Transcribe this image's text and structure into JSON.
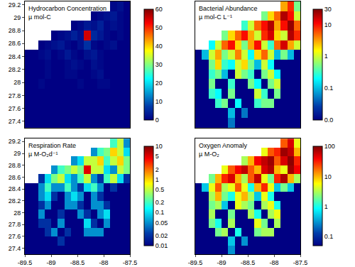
{
  "chart_data": [
    {
      "type": "heatmap",
      "title": "Hydrocarbon Concentration",
      "subtitle": "µ mol-C",
      "x": [
        -89.4375,
        -89.3125,
        -89.1875,
        -89.0625,
        -88.9375,
        -88.8125,
        -88.6875,
        -88.5625,
        -88.4375,
        -88.3125,
        -88.1875,
        -88.0625,
        -87.9375,
        -87.8125,
        -87.6875,
        -87.5625
      ],
      "y": [
        29.175,
        29.025,
        28.875,
        28.725,
        28.575,
        28.425,
        28.275,
        28.125,
        27.975,
        27.825,
        27.675,
        27.525,
        27.375
      ],
      "z": [
        [
          null,
          null,
          null,
          null,
          null,
          null,
          null,
          null,
          null,
          null,
          null,
          null,
          null,
          1,
          2,
          0
        ],
        [
          null,
          null,
          null,
          null,
          null,
          null,
          null,
          null,
          null,
          null,
          0,
          1,
          2,
          3,
          1,
          0
        ],
        [
          null,
          null,
          null,
          null,
          null,
          null,
          null,
          0,
          1,
          3,
          2,
          4,
          1,
          2,
          1,
          0
        ],
        [
          null,
          null,
          null,
          null,
          0,
          1,
          2,
          4,
          2,
          55,
          5,
          3,
          1,
          0,
          1,
          0
        ],
        [
          null,
          null,
          0,
          1,
          2,
          3,
          1,
          0,
          2,
          6,
          1,
          0,
          1,
          2,
          0,
          0
        ],
        [
          0,
          0,
          1,
          2,
          0,
          1,
          3,
          1,
          0,
          2,
          3,
          1,
          0,
          0,
          0,
          0
        ],
        [
          0,
          0,
          0,
          1,
          0,
          0,
          1,
          2,
          1,
          0,
          2,
          1,
          0,
          0,
          0,
          0
        ],
        [
          0,
          0,
          0,
          1,
          0,
          0,
          1,
          1,
          0,
          0,
          1,
          2,
          0,
          0,
          0,
          0
        ],
        [
          0,
          0,
          1,
          0,
          0,
          0,
          0,
          0,
          1,
          0,
          0,
          1,
          1,
          0,
          0,
          0
        ],
        [
          0,
          0,
          0,
          0,
          0,
          0,
          0,
          0,
          0,
          0,
          0,
          0,
          0,
          0,
          0,
          0
        ],
        [
          0,
          0,
          0,
          0,
          0,
          0,
          0,
          0,
          0,
          0,
          0,
          0,
          0,
          0,
          0,
          0
        ],
        [
          0,
          0,
          0,
          0,
          0,
          0,
          0,
          0,
          0,
          0,
          0,
          0,
          0,
          0,
          0,
          0
        ],
        [
          0,
          0,
          0,
          0,
          0,
          0,
          0,
          0,
          0,
          0,
          0,
          0,
          0,
          0,
          0,
          0
        ]
      ],
      "xlim": [
        -89.5,
        -87.5
      ],
      "ylim": [
        27.3,
        29.25
      ],
      "yticks": [
        27.4,
        27.6,
        27.8,
        28,
        28.2,
        28.4,
        28.6,
        28.8,
        29,
        29.2
      ],
      "tick_labels": "y",
      "colorbar": {
        "range": [
          0,
          60
        ],
        "ticks": [
          0,
          10,
          20,
          30,
          40,
          50,
          60
        ]
      }
    },
    {
      "type": "heatmap",
      "title": "Bacterial Abundance",
      "subtitle": "µ mol-C L⁻¹",
      "log": true,
      "x": [
        -89.4375,
        -89.3125,
        -89.1875,
        -89.0625,
        -88.9375,
        -88.8125,
        -88.6875,
        -88.5625,
        -88.4375,
        -88.3125,
        -88.1875,
        -88.0625,
        -87.9375,
        -87.8125,
        -87.6875,
        -87.5625
      ],
      "y": [
        29.175,
        29.025,
        28.875,
        28.725,
        28.575,
        28.425,
        28.275,
        28.125,
        27.975,
        27.825,
        27.675,
        27.525,
        27.375
      ],
      "z": [
        [
          null,
          null,
          null,
          null,
          null,
          null,
          null,
          null,
          null,
          null,
          null,
          null,
          null,
          3,
          8,
          0.5
        ],
        [
          null,
          null,
          null,
          null,
          null,
          null,
          null,
          null,
          null,
          null,
          0.5,
          2,
          5,
          20,
          10,
          1
        ],
        [
          null,
          null,
          null,
          null,
          null,
          null,
          null,
          0.3,
          1,
          5,
          10,
          20,
          3,
          10,
          25,
          5
        ],
        [
          null,
          null,
          null,
          null,
          0.5,
          2,
          5,
          10,
          3,
          1,
          8,
          15,
          2,
          1,
          20,
          8
        ],
        [
          null,
          null,
          0.2,
          1,
          5,
          10,
          2,
          0.5,
          3,
          10,
          1,
          0.3,
          5,
          15,
          3,
          1
        ],
        [
          0.01,
          0.1,
          1,
          3,
          0.5,
          1,
          4,
          1,
          0.2,
          2,
          5,
          1,
          0.1,
          0.5,
          0.1,
          0.01
        ],
        [
          0.01,
          0.01,
          0.5,
          2,
          0.3,
          0.2,
          1,
          2,
          0.5,
          0.1,
          1,
          0.2,
          0.01,
          0.01,
          0.01,
          0.01
        ],
        [
          0.01,
          0.01,
          0.3,
          0.5,
          0.1,
          0.01,
          1,
          0.5,
          0.3,
          0.01,
          0.5,
          1,
          0.2,
          0.01,
          0.01,
          0.01
        ],
        [
          0.01,
          0.01,
          0.5,
          0.01,
          0.01,
          0.3,
          0.01,
          0.01,
          0.5,
          0.2,
          0.01,
          0.5,
          1,
          0.01,
          0.01,
          0.01
        ],
        [
          0.01,
          0.01,
          0.3,
          0.2,
          0.01,
          0.5,
          0.01,
          0.01,
          0.01,
          1,
          0.3,
          0.01,
          0.5,
          0.01,
          0.01,
          0.01
        ],
        [
          0.01,
          0.01,
          0.01,
          0.3,
          0.5,
          0.01,
          0.2,
          0.01,
          0.01,
          0.3,
          0.5,
          0.5,
          0.01,
          0.01,
          0.01,
          0.01
        ],
        [
          0.01,
          0.01,
          0.01,
          0.01,
          0.01,
          0.1,
          0.01,
          0.05,
          0.01,
          0.01,
          0.01,
          0.01,
          0.01,
          0.01,
          0.01,
          0.01
        ],
        [
          0.01,
          0.01,
          0.01,
          0.01,
          0.01,
          0.05,
          0.01,
          0.01,
          0.01,
          0.01,
          0.01,
          0.01,
          0.01,
          0.01,
          0.01,
          0.01
        ]
      ],
      "xlim": [
        -89.5,
        -87.5
      ],
      "ylim": [
        27.3,
        29.25
      ],
      "tick_labels": false,
      "colorbar": {
        "range": [
          0.01,
          30
        ],
        "ticks": [
          {
            "value": 0.01,
            "label": "0.0"
          },
          0.1,
          1,
          10,
          30
        ]
      }
    },
    {
      "type": "heatmap",
      "title": "Respiration Rate",
      "subtitle": "µ M-O₂d⁻¹",
      "log": true,
      "x": [
        -89.4375,
        -89.3125,
        -89.1875,
        -89.0625,
        -88.9375,
        -88.8125,
        -88.6875,
        -88.5625,
        -88.4375,
        -88.3125,
        -88.1875,
        -88.0625,
        -87.9375,
        -87.8125,
        -87.6875,
        -87.5625
      ],
      "y": [
        29.175,
        29.025,
        28.875,
        28.725,
        28.575,
        28.425,
        28.275,
        28.125,
        27.975,
        27.825,
        27.675,
        27.525,
        27.375
      ],
      "z": [
        [
          null,
          null,
          null,
          null,
          null,
          null,
          null,
          null,
          null,
          null,
          null,
          null,
          null,
          0.2,
          0.5,
          0.05
        ],
        [
          null,
          null,
          null,
          null,
          null,
          null,
          null,
          null,
          null,
          null,
          0.05,
          0.2,
          0.3,
          1,
          0.5,
          0.1
        ],
        [
          null,
          null,
          null,
          null,
          null,
          null,
          null,
          0.05,
          0.1,
          0.5,
          0.5,
          1,
          0.2,
          0.5,
          1,
          0.3
        ],
        [
          null,
          null,
          null,
          null,
          0.05,
          0.2,
          0.3,
          0.5,
          0.3,
          5,
          0.5,
          0.5,
          0.1,
          0.05,
          0.5,
          0.3
        ],
        [
          null,
          null,
          0.02,
          0.1,
          0.3,
          0.5,
          0.1,
          0.05,
          0.2,
          0.5,
          0.05,
          0.02,
          0.2,
          0.5,
          0.1,
          0.02
        ],
        [
          0.01,
          0.01,
          0.05,
          0.2,
          0.05,
          0.05,
          0.2,
          0.05,
          0.02,
          0.1,
          0.2,
          0.05,
          0.01,
          0.02,
          0.01,
          0.01
        ],
        [
          0.01,
          0.01,
          0.05,
          0.1,
          0.02,
          0.01,
          0.05,
          0.1,
          0.05,
          0.01,
          0.05,
          0.02,
          0.01,
          0.01,
          0.01,
          0.01
        ],
        [
          0.01,
          0.01,
          0.02,
          0.05,
          0.01,
          0.01,
          0.05,
          0.05,
          0.02,
          0.01,
          0.05,
          0.05,
          0.02,
          0.01,
          0.01,
          0.01
        ],
        [
          0.01,
          0.01,
          0.05,
          0.01,
          0.01,
          0.02,
          0.01,
          0.01,
          0.05,
          0.02,
          0.01,
          0.05,
          0.1,
          0.01,
          0.01,
          0.01
        ],
        [
          0.01,
          0.01,
          0.02,
          0.02,
          0.01,
          0.05,
          0.01,
          0.01,
          0.01,
          0.1,
          0.02,
          0.01,
          0.05,
          0.01,
          0.01,
          0.01
        ],
        [
          0.01,
          0.01,
          0.01,
          0.02,
          0.05,
          0.01,
          0.02,
          0.01,
          0.01,
          0.05,
          0.05,
          0.05,
          0.01,
          0.01,
          0.01,
          0.01
        ],
        [
          0.01,
          0.01,
          0.01,
          0.01,
          0.01,
          0.02,
          0.01,
          0.01,
          0.01,
          0.01,
          0.01,
          0.01,
          0.01,
          0.01,
          0.01,
          0.01
        ],
        [
          0.01,
          0.01,
          0.01,
          0.01,
          0.01,
          0.01,
          0.01,
          0.01,
          0.01,
          0.01,
          0.01,
          0.01,
          0.01,
          0.01,
          0.01,
          0.01
        ]
      ],
      "xlim": [
        -89.5,
        -87.5
      ],
      "ylim": [
        27.3,
        29.25
      ],
      "xticks": [
        -89.5,
        -89,
        -88.5,
        -88,
        -87.5
      ],
      "yticks": [
        27.4,
        27.6,
        27.8,
        28,
        28.2,
        28.4,
        28.6,
        28.8,
        29,
        29.2
      ],
      "tick_labels": true,
      "colorbar": {
        "range": [
          0.01,
          10
        ],
        "ticks": [
          0.01,
          0.02,
          0.05,
          0.1,
          0.2,
          0.5,
          1,
          2,
          5,
          10
        ]
      }
    },
    {
      "type": "heatmap",
      "title": "Oxygen Anomaly",
      "subtitle": "µ M-O₂",
      "log": true,
      "x": [
        -89.4375,
        -89.3125,
        -89.1875,
        -89.0625,
        -88.9375,
        -88.8125,
        -88.6875,
        -88.5625,
        -88.4375,
        -88.3125,
        -88.1875,
        -88.0625,
        -87.9375,
        -87.8125,
        -87.6875,
        -87.5625
      ],
      "y": [
        29.175,
        29.025,
        28.875,
        28.725,
        28.575,
        28.425,
        28.275,
        28.125,
        27.975,
        27.825,
        27.675,
        27.525,
        27.375
      ],
      "z": [
        [
          null,
          null,
          null,
          null,
          null,
          null,
          null,
          null,
          null,
          null,
          null,
          null,
          null,
          20,
          50,
          5
        ],
        [
          null,
          null,
          null,
          null,
          null,
          null,
          null,
          null,
          null,
          null,
          5,
          20,
          30,
          80,
          60,
          10
        ],
        [
          null,
          null,
          null,
          null,
          null,
          null,
          null,
          3,
          10,
          40,
          60,
          80,
          20,
          50,
          90,
          30
        ],
        [
          null,
          null,
          null,
          null,
          5,
          20,
          40,
          60,
          20,
          10,
          50,
          70,
          10,
          5,
          80,
          40
        ],
        [
          null,
          null,
          2,
          10,
          30,
          50,
          10,
          3,
          20,
          60,
          5,
          2,
          30,
          70,
          10,
          3
        ],
        [
          0.05,
          0.5,
          5,
          20,
          3,
          5,
          20,
          5,
          1,
          10,
          30,
          5,
          0.5,
          2,
          0.5,
          0.05
        ],
        [
          0.05,
          0.05,
          3,
          10,
          2,
          1,
          5,
          10,
          3,
          0.5,
          5,
          1,
          0.05,
          0.05,
          0.05,
          0.05
        ],
        [
          0.05,
          0.05,
          2,
          3,
          0.5,
          0.05,
          5,
          3,
          2,
          0.05,
          3,
          5,
          1,
          0.05,
          0.05,
          0.05
        ],
        [
          0.05,
          0.05,
          3,
          0.05,
          0.05,
          2,
          0.05,
          0.05,
          3,
          1,
          0.05,
          3,
          5,
          0.05,
          0.05,
          0.05
        ],
        [
          0.05,
          0.05,
          2,
          1,
          0.05,
          3,
          0.05,
          0.05,
          0.05,
          5,
          2,
          0.05,
          3,
          0.05,
          0.05,
          0.05
        ],
        [
          0.05,
          0.05,
          0.05,
          2,
          3,
          0.05,
          1,
          0.05,
          0.05,
          2,
          3,
          3,
          0.05,
          0.05,
          0.05,
          0.05
        ],
        [
          0.05,
          0.05,
          0.05,
          0.05,
          0.05,
          0.5,
          0.05,
          0.3,
          0.05,
          0.05,
          0.05,
          0.05,
          0.05,
          0.05,
          0.05,
          0.05
        ],
        [
          0.05,
          0.05,
          0.05,
          0.05,
          0.05,
          0.3,
          0.05,
          0.05,
          0.05,
          0.05,
          0.05,
          0.05,
          0.05,
          0.05,
          0.05,
          0.05
        ]
      ],
      "xlim": [
        -89.5,
        -87.5
      ],
      "ylim": [
        27.3,
        29.25
      ],
      "xticks": [
        -89.5,
        -89,
        -88.5,
        -88,
        -87.5
      ],
      "tick_labels": "x",
      "colorbar": {
        "range": [
          0.05,
          100
        ],
        "ticks": [
          0.1,
          1,
          10,
          100
        ]
      }
    }
  ]
}
